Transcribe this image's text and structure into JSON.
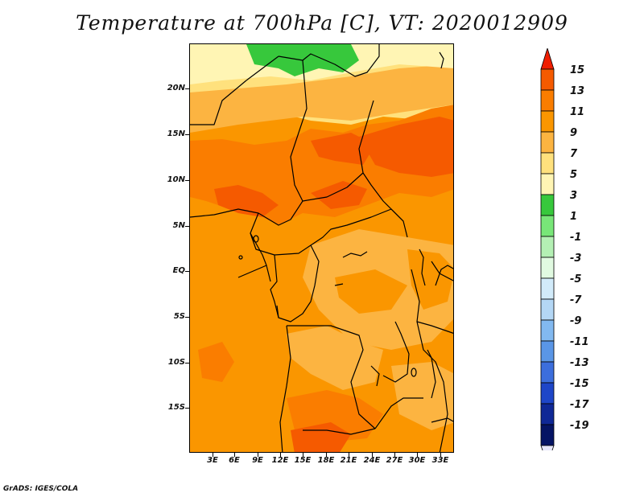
{
  "title": "Temperature at 700hPa [C], VT: 2020012909",
  "footer": "GrADS: IGES/COLA",
  "lat_labels": [
    "20N",
    "15N",
    "10N",
    "5N",
    "EQ",
    "5S",
    "10S",
    "15S"
  ],
  "lon_labels": [
    "3E",
    "6E",
    "9E",
    "12E",
    "15E",
    "18E",
    "21E",
    "24E",
    "27E",
    "30E",
    "33E"
  ],
  "colorbar": {
    "labels": [
      "15",
      "13",
      "11",
      "9",
      "7",
      "5",
      "3",
      "1",
      "-1",
      "-3",
      "-5",
      "-7",
      "-9",
      "-11",
      "-13",
      "-15",
      "-17",
      "-19"
    ],
    "colors": [
      "#f01e00",
      "#f55a00",
      "#fa7d00",
      "#fa9600",
      "#fcb441",
      "#ffe17d",
      "#fff5b4",
      "#37c83c",
      "#78e678",
      "#b4f0b4",
      "#e1fae1",
      "#d2ebfa",
      "#b4d7f5",
      "#82b9f0",
      "#5a96e6",
      "#3c6edc",
      "#1e46c8",
      "#0f2896",
      "#051464"
    ],
    "under_color": "#e6e6fa"
  },
  "map_colors": {
    "t13": "#f55a00",
    "t11": "#fa7d00",
    "t9": "#fa9600",
    "t7": "#fcb441",
    "t5": "#ffe17d",
    "t3": "#fff5b4",
    "t1": "#37c83c"
  }
}
